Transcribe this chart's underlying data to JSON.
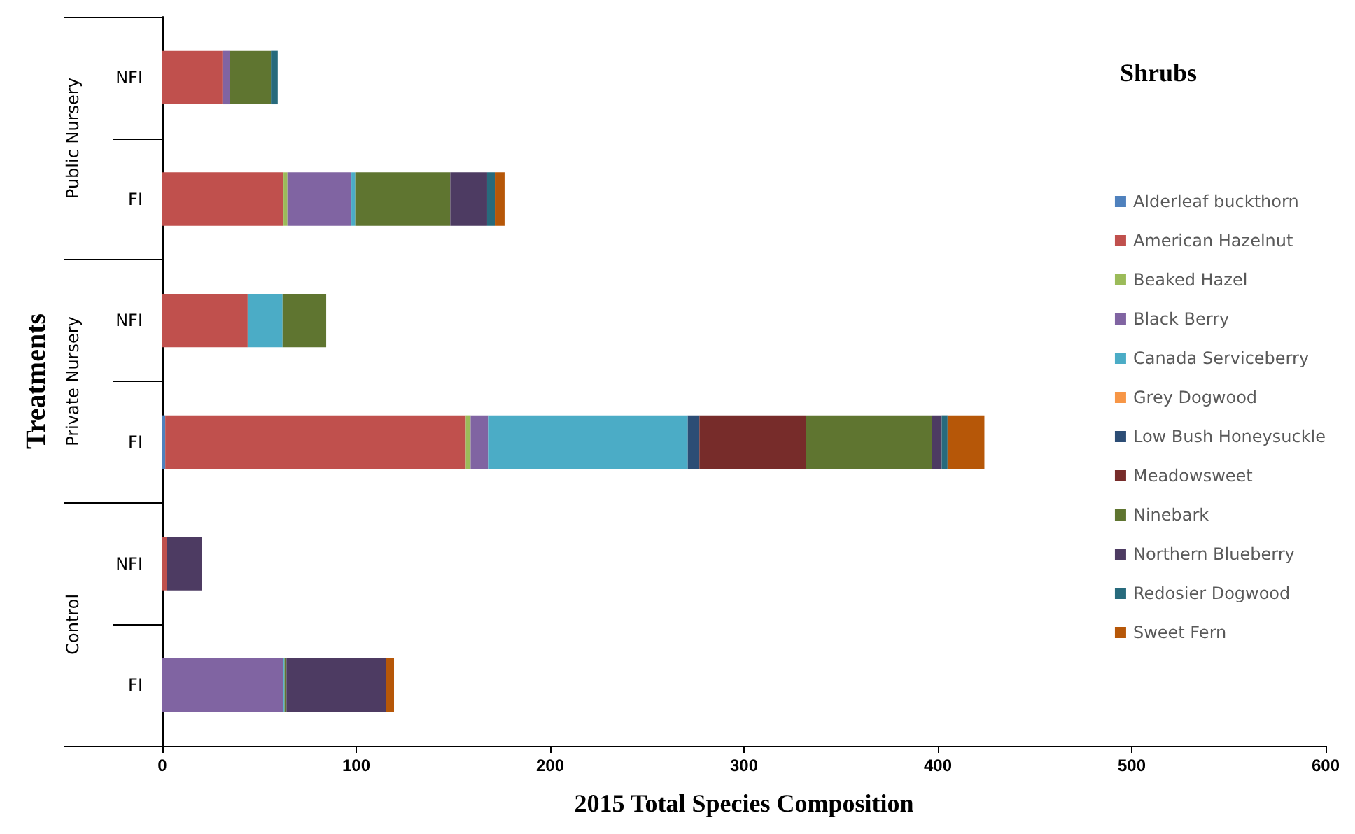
{
  "chart_data": {
    "type": "bar",
    "orientation": "horizontal",
    "stacked": true,
    "xlabel": "2015 Total Species Composition",
    "ylabel": "Treatments",
    "legend_title": "Shrubs",
    "legend": "right",
    "annotations": [
      "Public Nursery",
      "Private Nursery",
      "Control"
    ],
    "categories": [
      "NFI",
      "FI",
      "NFI",
      "FI",
      "NFI",
      "FI"
    ],
    "xlim": [
      0,
      600
    ],
    "xticks": [
      0,
      100,
      200,
      300,
      400,
      500,
      600
    ],
    "grid": false,
    "series": [
      {
        "name": "Alderleaf buckthorn",
        "color": "#4f81bd",
        "values": [
          0,
          0,
          0,
          1.5,
          0,
          0
        ]
      },
      {
        "name": "American Hazelnut",
        "color": "#c0504d",
        "values": [
          31,
          62.5,
          44,
          155,
          2.5,
          0
        ]
      },
      {
        "name": "Beaked Hazel",
        "color": "#9bbb59",
        "values": [
          0,
          2,
          0,
          2.5,
          0,
          0
        ]
      },
      {
        "name": "Black Berry",
        "color": "#8064a2",
        "values": [
          4,
          33,
          0,
          9,
          0,
          62.5
        ]
      },
      {
        "name": "Canada Serviceberry",
        "color": "#4bacc6",
        "values": [
          0,
          2,
          18,
          103,
          0,
          0.5
        ]
      },
      {
        "name": "Grey Dogwood",
        "color": "#f79646",
        "values": [
          0,
          0,
          0,
          0,
          0,
          0
        ]
      },
      {
        "name": "Low Bush Honeysuckle",
        "color": "#2c4d75",
        "values": [
          0,
          0,
          0,
          6,
          0,
          0
        ]
      },
      {
        "name": "Meadowsweet",
        "color": "#772c2a",
        "values": [
          0,
          0,
          0,
          55,
          0,
          0
        ]
      },
      {
        "name": "Ninebark",
        "color": "#5f7530",
        "values": [
          21,
          49,
          22.5,
          65,
          0,
          1
        ]
      },
      {
        "name": "Northern Blueberry",
        "color": "#4d3b62",
        "values": [
          0,
          19,
          0,
          5,
          18,
          51.5
        ]
      },
      {
        "name": "Redosier Dogwood",
        "color": "#276a7c",
        "values": [
          3.5,
          4,
          0,
          3,
          0,
          0
        ]
      },
      {
        "name": "Sweet Fern",
        "color": "#b65708",
        "values": [
          0,
          5,
          0,
          19,
          0,
          4
        ]
      }
    ]
  }
}
